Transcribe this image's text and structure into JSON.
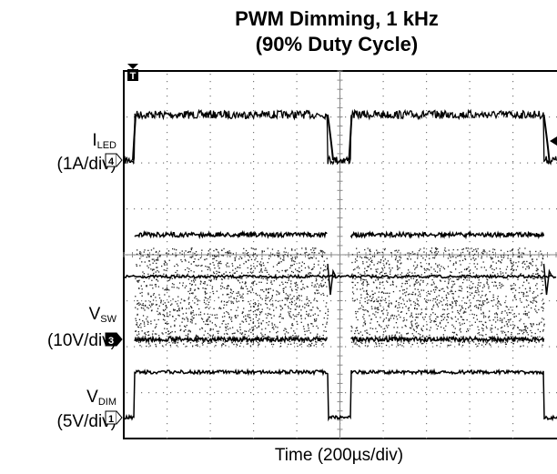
{
  "chart_data": {
    "type": "line",
    "title": "PWM Dimming, 1 kHz",
    "subtitle": "(90% Duty Cycle)",
    "xlabel": "Time (200µs/div)",
    "grid": true,
    "divisions": {
      "x": 10,
      "y": 8
    },
    "trigger_marker": "T",
    "series": [
      {
        "name": "I",
        "name_sub": "LED",
        "scale": "(1A/div)",
        "channel": "4",
        "channel_style": "outline",
        "low_level": 0,
        "high_level": 1.1
      },
      {
        "name": "V",
        "name_sub": "SW",
        "scale": "(10V/div)",
        "channel": "3",
        "channel_style": "filled",
        "low_level": 0,
        "high_level": 20
      },
      {
        "name": "V",
        "name_sub": "DIM",
        "scale": "(5V/div)",
        "channel": "1",
        "channel_style": "outline",
        "low_level": 0,
        "high_level": 5
      }
    ]
  }
}
